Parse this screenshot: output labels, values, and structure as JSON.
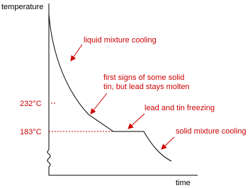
{
  "axes": {
    "y_label": "temperature",
    "x_label": "time"
  },
  "temperature_marks": [
    "232°C",
    "183°C"
  ],
  "annotations": [
    "liquid mixture cooling",
    "first signs of some solid",
    "tin, but lead stays molten",
    "lead and tin freezing",
    "solid mixture cooling"
  ]
}
